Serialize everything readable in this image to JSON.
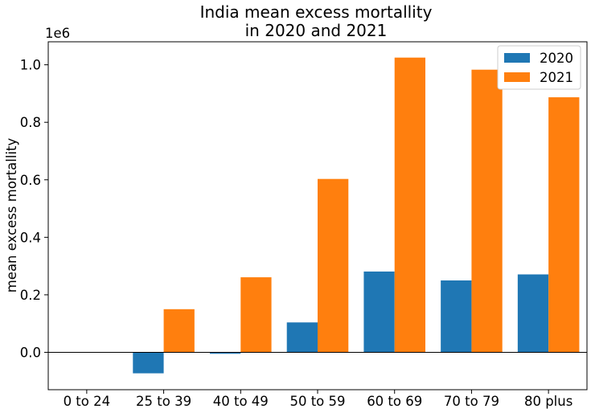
{
  "chart_data": {
    "type": "bar",
    "title": [
      "India mean excess mortallity",
      "in 2020 and 2021"
    ],
    "xlabel": "",
    "ylabel": "mean excess mortallity",
    "y_offset_label": "1e6",
    "categories": [
      "0 to 24",
      "25 to 39",
      "40 to 49",
      "50 to 59",
      "60 to 69",
      "70 to 79",
      "80 plus"
    ],
    "series": [
      {
        "name": "2020",
        "color": "#1f77b4",
        "values": [
          0,
          -73000,
          -5000,
          104000,
          281000,
          250000,
          271000
        ]
      },
      {
        "name": "2021",
        "color": "#ff7f0e",
        "values": [
          0,
          150000,
          261000,
          603000,
          1025000,
          983000,
          887000
        ]
      }
    ],
    "ylim": [
      -130000,
      1080000
    ],
    "yticks": [
      0,
      200000,
      400000,
      600000,
      800000,
      1000000
    ],
    "ytick_labels": [
      "0.0",
      "0.2",
      "0.4",
      "0.6",
      "0.8",
      "1.0"
    ],
    "zero_line": true,
    "grid": false,
    "legend": "top-right"
  }
}
